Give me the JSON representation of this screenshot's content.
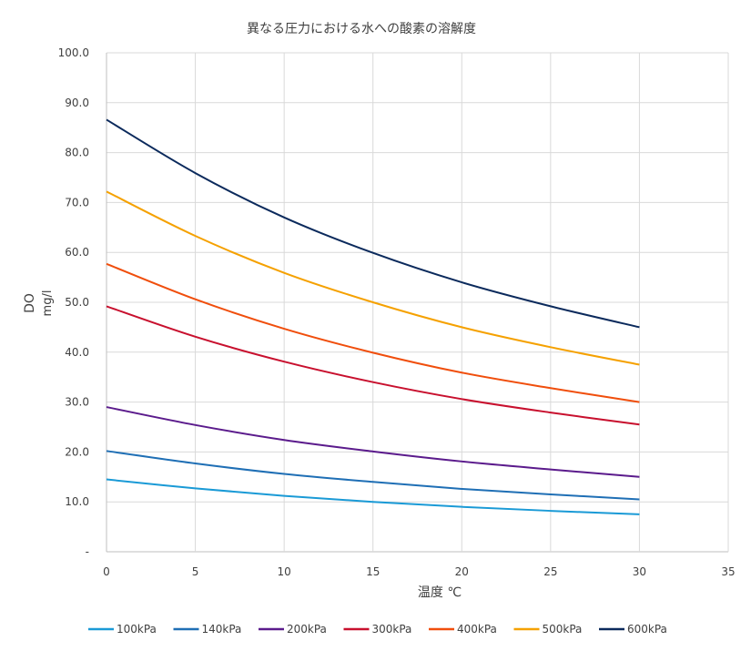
{
  "chart_data": {
    "type": "line",
    "title": "異なる圧力における水への酸素の溶解度",
    "xlabel": "温度 ℃",
    "ylabel": [
      "DO",
      "mg/l"
    ],
    "xlim": [
      0,
      35
    ],
    "ylim": [
      0,
      100
    ],
    "xticks": [
      "0",
      "5",
      "10",
      "15",
      "20",
      "25",
      "30",
      "35"
    ],
    "yticks": [
      "-",
      "10.0",
      "20.0",
      "30.0",
      "40.0",
      "50.0",
      "60.0",
      "70.0",
      "80.0",
      "90.0",
      "100.0"
    ],
    "grid": true,
    "legend": "bottom",
    "x": [
      0,
      5,
      10,
      15,
      20,
      25,
      30
    ],
    "series": [
      {
        "name": "100kPa",
        "color": "#1a9ad6",
        "values": [
          14.5,
          12.7,
          11.2,
          10.0,
          9.0,
          8.2,
          7.5
        ]
      },
      {
        "name": "140kPa",
        "color": "#1f6fb5",
        "values": [
          20.2,
          17.7,
          15.6,
          14.0,
          12.6,
          11.5,
          10.5
        ]
      },
      {
        "name": "200kPa",
        "color": "#5b1b8c",
        "values": [
          29.0,
          25.4,
          22.4,
          20.1,
          18.1,
          16.5,
          15.0
        ]
      },
      {
        "name": "300kPa",
        "color": "#c8102e",
        "values": [
          49.2,
          43.1,
          38.1,
          34.0,
          30.6,
          27.9,
          25.5
        ]
      },
      {
        "name": "400kPa",
        "color": "#f04e0c",
        "values": [
          57.7,
          50.6,
          44.7,
          39.9,
          35.9,
          32.8,
          30.0
        ]
      },
      {
        "name": "500kPa",
        "color": "#f5a100",
        "values": [
          72.2,
          63.3,
          55.9,
          50.0,
          45.0,
          41.0,
          37.5
        ]
      },
      {
        "name": "600kPa",
        "color": "#0b2a5c",
        "values": [
          86.6,
          75.9,
          67.0,
          59.9,
          54.0,
          49.2,
          45.0
        ]
      }
    ]
  }
}
